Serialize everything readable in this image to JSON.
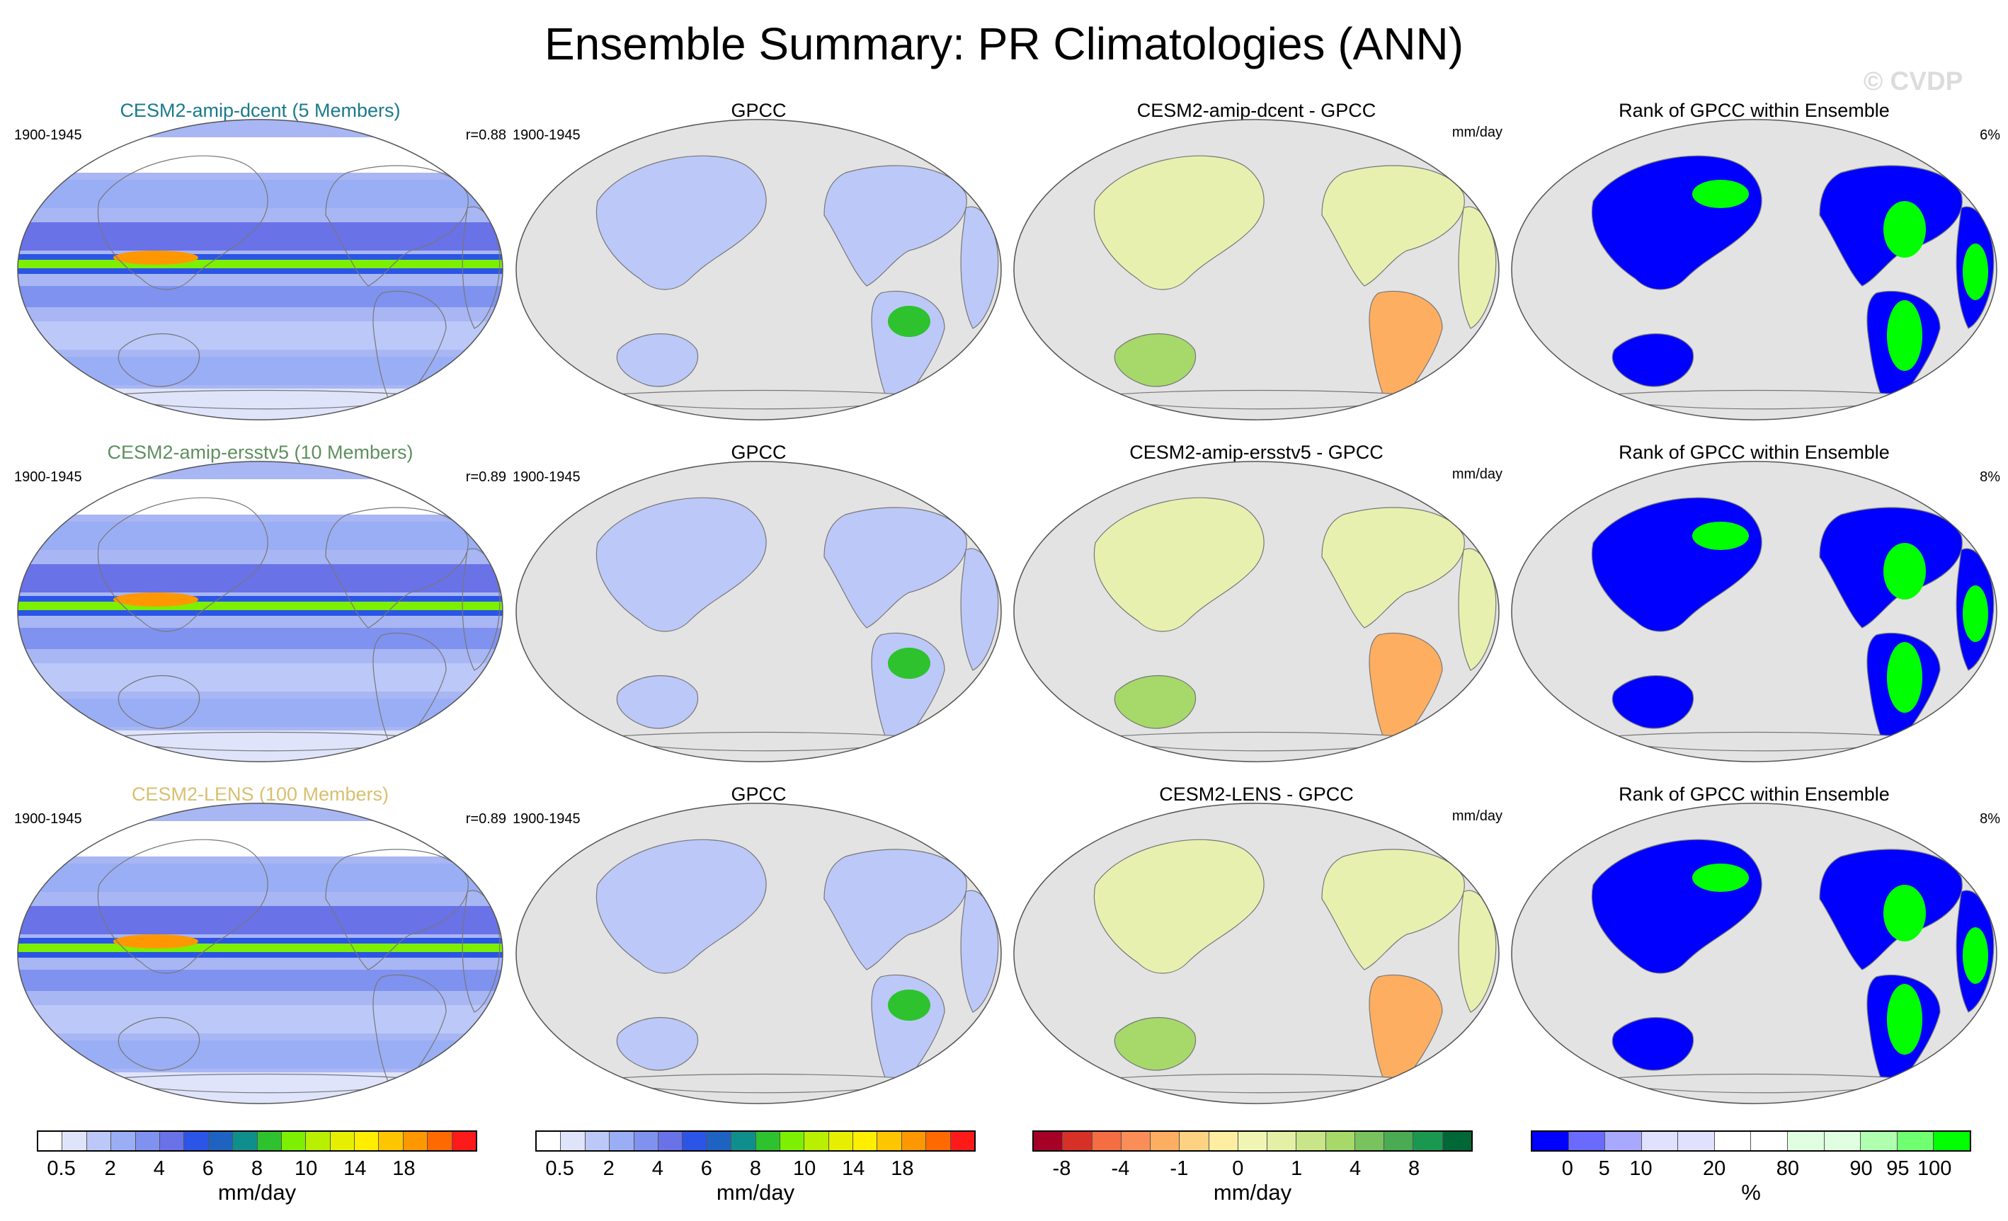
{
  "title": "Ensemble Summary: PR Climatologies (ANN)",
  "watermark": "© CVDP",
  "rows": [
    {
      "ensemble": {
        "title": "CESM2-amip-dcent (5 Members)",
        "years": "1900-1945",
        "corr": "r=0.88"
      },
      "obs": {
        "title": "GPCC",
        "years": "1900-1945"
      },
      "diff": {
        "title": "CESM2-amip-dcent - GPCC",
        "units": "mm/day"
      },
      "rank": {
        "title": "Rank of GPCC within Ensemble",
        "pct": "6%"
      }
    },
    {
      "ensemble": {
        "title": "CESM2-amip-ersstv5 (10 Members)",
        "years": "1900-1945",
        "corr": "r=0.89"
      },
      "obs": {
        "title": "GPCC",
        "years": "1900-1945"
      },
      "diff": {
        "title": "CESM2-amip-ersstv5 - GPCC",
        "units": "mm/day"
      },
      "rank": {
        "title": "Rank of GPCC within Ensemble",
        "pct": "8%"
      }
    },
    {
      "ensemble": {
        "title": "CESM2-LENS (100 Members)",
        "years": "1900-1945",
        "corr": "r=0.89"
      },
      "obs": {
        "title": "GPCC",
        "years": "1900-1945"
      },
      "diff": {
        "title": "CESM2-LENS - GPCC",
        "units": "mm/day"
      },
      "rank": {
        "title": "Rank of GPCC within Ensemble",
        "pct": "8%"
      }
    }
  ],
  "colorbars": [
    {
      "name": "precip",
      "units": "mm/day",
      "colors": [
        "#ffffff",
        "#dfe4fb",
        "#bcc8f8",
        "#9aaef5",
        "#7f92ef",
        "#6a72e8",
        "#2b55e6",
        "#1f63c2",
        "#0f8f8c",
        "#2ec22e",
        "#7cf000",
        "#b8f000",
        "#e6ef00",
        "#ffee00",
        "#ffc600",
        "#ff9800",
        "#ff6a00",
        "#ff1a1a"
      ],
      "ticks": [
        "0.5",
        "2",
        "4",
        "6",
        "8",
        "10",
        "14",
        "18"
      ]
    },
    {
      "name": "precip-obs",
      "units": "mm/day",
      "colors": [
        "#ffffff",
        "#dfe4fb",
        "#bcc8f8",
        "#9aaef5",
        "#7f92ef",
        "#6a72e8",
        "#2b55e6",
        "#1f63c2",
        "#0f8f8c",
        "#2ec22e",
        "#7cf000",
        "#b8f000",
        "#e6ef00",
        "#ffee00",
        "#ffc600",
        "#ff9800",
        "#ff6a00",
        "#ff1a1a"
      ],
      "ticks": [
        "0.5",
        "2",
        "4",
        "6",
        "8",
        "10",
        "14",
        "18"
      ]
    },
    {
      "name": "difference",
      "units": "mm/day",
      "colors": [
        "#a50026",
        "#d73027",
        "#f46d43",
        "#fb8d59",
        "#fdae61",
        "#fed283",
        "#ffeea1",
        "#f1f5b4",
        "#e3f0a6",
        "#c8e588",
        "#a6d96a",
        "#79c35e",
        "#4aab52",
        "#1a9850",
        "#006837"
      ],
      "ticks": [
        "-8",
        "-4",
        "-1",
        "0",
        "1",
        "4",
        "8"
      ]
    },
    {
      "name": "rank",
      "units": "%",
      "colors": [
        "#0000ff",
        "#6a6aff",
        "#a8a8ff",
        "#e0e0ff",
        "#e0e0ff",
        "#ffffff",
        "#ffffff",
        "#e0ffe0",
        "#e0ffe0",
        "#b0ffb0",
        "#70ff70",
        "#00ff00"
      ],
      "ticks": [
        "0",
        "5",
        "10",
        "20",
        "80",
        "90",
        "95",
        "100"
      ]
    }
  ]
}
